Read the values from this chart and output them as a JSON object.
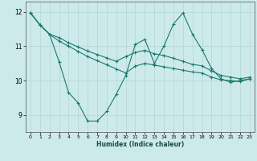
{
  "xlabel": "Humidex (Indice chaleur)",
  "bg_color": "#cdeaea",
  "grid_color": "#b8d8d8",
  "line_color": "#1a7a6e",
  "xlim": [
    -0.5,
    23.5
  ],
  "ylim": [
    8.5,
    12.3
  ],
  "yticks": [
    9,
    10,
    11,
    12
  ],
  "xticks": [
    0,
    1,
    2,
    3,
    4,
    5,
    6,
    7,
    8,
    9,
    10,
    11,
    12,
    13,
    14,
    15,
    16,
    17,
    18,
    19,
    20,
    21,
    22,
    23
  ],
  "line1_x": [
    0,
    1,
    2,
    3,
    4,
    5,
    6,
    7,
    8,
    9,
    10,
    11,
    12,
    13,
    14,
    15,
    16,
    17,
    18,
    19,
    20,
    21,
    22,
    23
  ],
  "line1_y": [
    11.97,
    11.62,
    11.35,
    10.55,
    9.65,
    9.35,
    8.82,
    8.82,
    9.1,
    9.6,
    10.15,
    11.05,
    11.2,
    10.5,
    11.0,
    11.65,
    11.97,
    11.35,
    10.9,
    10.35,
    10.05,
    9.95,
    10.0,
    10.05
  ],
  "line2_x": [
    0,
    1,
    2,
    3,
    4,
    5,
    6,
    7,
    8,
    9,
    10,
    11,
    12,
    13,
    14,
    15,
    16,
    17,
    18,
    19,
    20,
    21,
    22,
    23
  ],
  "line2_y": [
    11.97,
    11.62,
    11.35,
    11.15,
    11.0,
    10.85,
    10.7,
    10.58,
    10.46,
    10.34,
    10.22,
    10.42,
    10.5,
    10.45,
    10.4,
    10.35,
    10.3,
    10.25,
    10.22,
    10.1,
    10.02,
    10.0,
    9.97,
    10.05
  ],
  "line3_x": [
    0,
    1,
    2,
    3,
    4,
    5,
    6,
    7,
    8,
    9,
    10,
    11,
    12,
    13,
    14,
    15,
    16,
    17,
    18,
    19,
    20,
    21,
    22,
    23
  ],
  "line3_y": [
    11.97,
    11.62,
    11.35,
    11.25,
    11.1,
    10.98,
    10.86,
    10.76,
    10.66,
    10.56,
    10.7,
    10.82,
    10.88,
    10.78,
    10.73,
    10.65,
    10.56,
    10.47,
    10.43,
    10.28,
    10.15,
    10.1,
    10.05,
    10.1
  ]
}
